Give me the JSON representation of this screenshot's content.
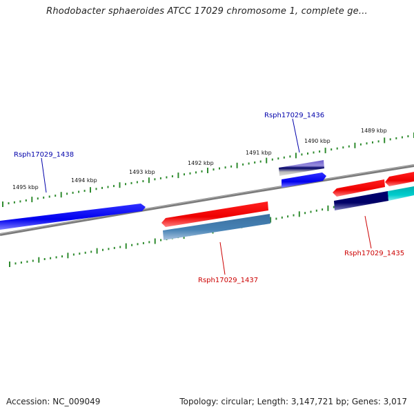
{
  "title": "Rhodobacter sphaeroides ATCC 17029 chromosome 1, complete ge...",
  "tick_labels": [
    "1495 kbp",
    "1494 kbp",
    "1493 kbp",
    "1492 kbp",
    "1491 kbp",
    "1490 kbp",
    "1489 kbp"
  ],
  "genes": [
    {
      "name": "Rsph17029_1438",
      "color": "#0000aa"
    },
    {
      "name": "Rsph17029_1436",
      "color": "#0000aa"
    },
    {
      "name": "Rsph17029_1437",
      "color": "#cc0000"
    },
    {
      "name": "Rsph17029_1435",
      "color": "#cc0000"
    }
  ],
  "footer": {
    "accession": "Accession: NC_009049",
    "summary": "Topology: circular; Length: 3,147,721 bp; Genes: 3,017"
  },
  "colors": {
    "backbone": "#7a7a7a",
    "ticks": "#2e8b2e",
    "forward_feature": "#0000ee",
    "reverse_feature": "#ee0000",
    "dark_feature": "#000066",
    "steel_feature": "#4682b4",
    "cyan_feature": "#00cccc"
  }
}
